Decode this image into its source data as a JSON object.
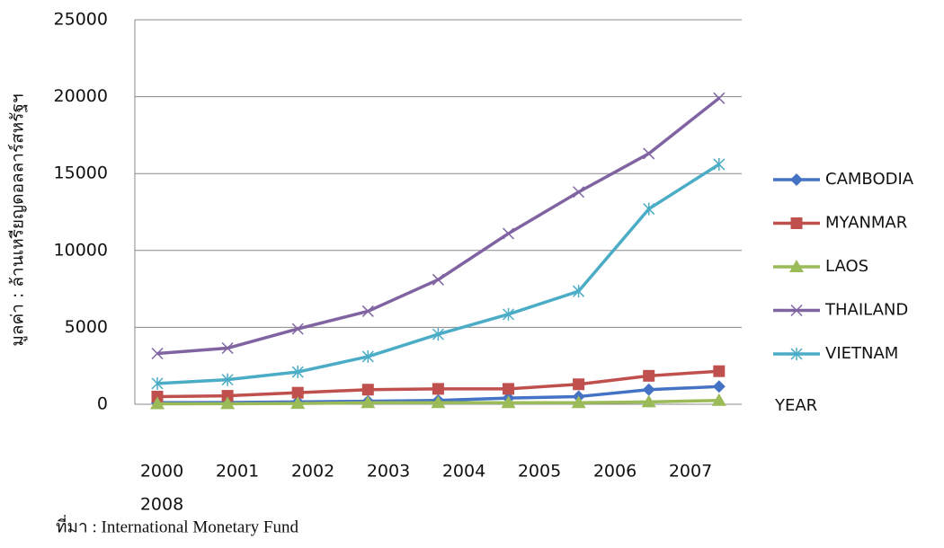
{
  "chart_data": {
    "type": "line",
    "y_label": "มูลค่า : ล้านเหรียญดอลลาร์สหรัฐฯ",
    "x_label": "YEAR",
    "source": "ที่มา : International  Monetary Fund",
    "categories": [
      "2000",
      "2001",
      "2002",
      "2003",
      "2004",
      "2005",
      "2006",
      "2007",
      "2008"
    ],
    "series": [
      {
        "name": "CAMBODIA",
        "color": "#4472c4",
        "marker": "diamond",
        "values": [
          100,
          120,
          150,
          200,
          250,
          400,
          500,
          950,
          1150
        ]
      },
      {
        "name": "MYANMAR",
        "color": "#c0504d",
        "marker": "square",
        "values": [
          500,
          550,
          750,
          950,
          1000,
          1000,
          1300,
          1850,
          2150
        ]
      },
      {
        "name": "LAOS",
        "color": "#9bbb59",
        "marker": "triangle",
        "values": [
          30,
          40,
          50,
          100,
          100,
          100,
          100,
          150,
          250
        ]
      },
      {
        "name": "THAILAND",
        "color": "#8064a2",
        "marker": "x",
        "values": [
          3300,
          3650,
          4900,
          6050,
          8100,
          11100,
          13800,
          16300,
          19900
        ]
      },
      {
        "name": "VIETNAM",
        "color": "#4bacc6",
        "marker": "star",
        "values": [
          1350,
          1600,
          2100,
          3100,
          4550,
          5850,
          7350,
          12700,
          15600
        ]
      }
    ],
    "ylim": [
      0,
      25000
    ],
    "yticks": [
      0,
      5000,
      10000,
      15000,
      20000,
      25000
    ],
    "grid": true,
    "legend": "right"
  }
}
